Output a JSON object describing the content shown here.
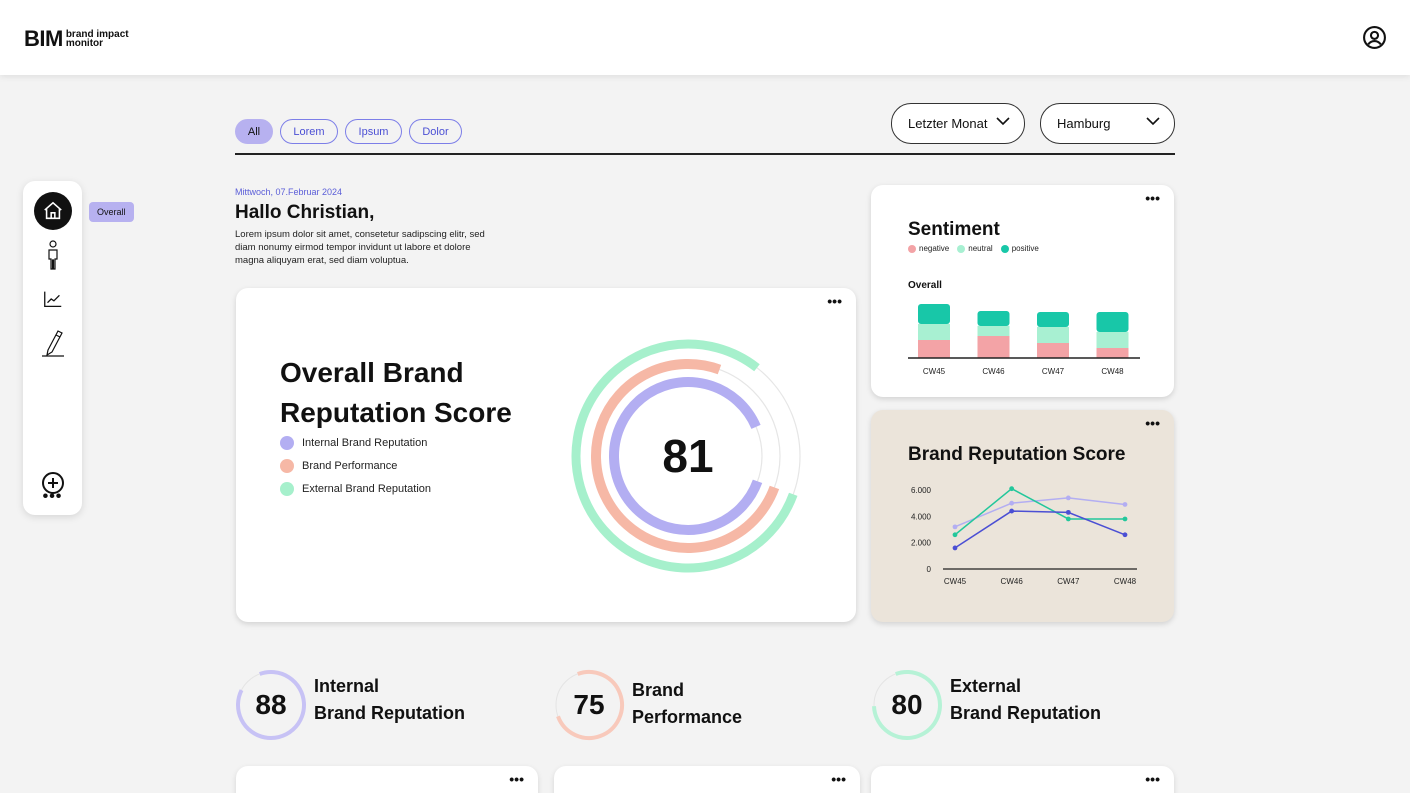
{
  "brand": {
    "logo_main": "BIM",
    "logo_sub_line1": "brand impact",
    "logo_sub_line2": "monitor"
  },
  "nav": {
    "items": [
      "home",
      "person",
      "chart",
      "pencil"
    ],
    "tooltip": "Overall",
    "add_icon": "plus-circle-icon"
  },
  "filters": {
    "pills": [
      {
        "label": "All",
        "active": true
      },
      {
        "label": "Lorem",
        "active": false
      },
      {
        "label": "Ipsum",
        "active": false
      },
      {
        "label": "Dolor",
        "active": false
      }
    ],
    "period": "Letzter Monat",
    "city": "Hamburg"
  },
  "intro": {
    "date": "Mittwoch, 07.Februar 2024",
    "greeting": "Hallo Christian,",
    "text": "Lorem ipsum dolor sit amet, consetetur sadipscing elitr, sed diam nonumy eirmod tempor invidunt ut labore et dolore magna aliquyam erat, sed diam voluptua."
  },
  "overall_card": {
    "title_line1": "Overall Brand",
    "title_line2": "Reputation Score",
    "score": "81",
    "legend": [
      {
        "label": "Internal Brand Reputation",
        "color": "#b3aef2"
      },
      {
        "label": "Brand Performance",
        "color": "#f6b8a6"
      },
      {
        "label": "External Brand Reputation",
        "color": "#a6f0cc"
      }
    ],
    "rings": [
      {
        "name": "External Brand Reputation",
        "fraction": 0.8,
        "color": "#a6f0cc"
      },
      {
        "name": "Brand Performance",
        "fraction": 0.75,
        "color": "#f6b8a6"
      },
      {
        "name": "Internal Brand Reputation",
        "fraction": 0.88,
        "color": "#b3aef2"
      }
    ]
  },
  "sentiment_card": {
    "title": "Sentiment",
    "subtitle": "Overall",
    "legend": [
      {
        "label": "negative",
        "color": "#f3a3a6"
      },
      {
        "label": "neutral",
        "color": "#a8f0d2"
      },
      {
        "label": "positive",
        "color": "#18c7a8"
      }
    ]
  },
  "score_card": {
    "title": "Brand Reputation Score"
  },
  "chart_data": [
    {
      "type": "bar",
      "title": "Sentiment",
      "subtitle": "Overall",
      "categories": [
        "CW45",
        "CW46",
        "CW47",
        "CW48"
      ],
      "stacked": true,
      "series": [
        {
          "name": "negative",
          "values": [
            18,
            22,
            15,
            10
          ],
          "color": "#f3a3a6"
        },
        {
          "name": "neutral",
          "values": [
            16,
            10,
            16,
            16
          ],
          "color": "#a8f0d2"
        },
        {
          "name": "positive",
          "values": [
            20,
            15,
            15,
            20
          ],
          "color": "#18c7a8"
        }
      ],
      "ylim": [
        0,
        60
      ]
    },
    {
      "type": "line",
      "title": "Brand Reputation Score",
      "categories": [
        "CW45",
        "CW46",
        "CW47",
        "CW48"
      ],
      "yticks": [
        "6.000",
        "4.000",
        "2.000",
        "0"
      ],
      "ylim": [
        0,
        6000
      ],
      "series": [
        {
          "values": [
            3200,
            5000,
            5400,
            4900
          ],
          "color": "#b3aef2"
        },
        {
          "values": [
            2600,
            6100,
            3800,
            3800
          ],
          "color": "#23c79b"
        },
        {
          "values": [
            1600,
            4400,
            4300,
            2600
          ],
          "color": "#4b4fd4"
        }
      ]
    }
  ],
  "kpis": [
    {
      "value": "88",
      "line1": "Internal",
      "line2": "Brand Reputation",
      "fraction": 0.88,
      "color": "#c7c2f5"
    },
    {
      "value": "75",
      "line1": "Brand",
      "line2": "Performance",
      "fraction": 0.75,
      "color": "#f8c9bb"
    },
    {
      "value": "80",
      "line1": "External",
      "line2": "Brand Reputation",
      "fraction": 0.8,
      "color": "#b6f2d6"
    }
  ],
  "colors": {
    "accent": "#b7b1f0",
    "link": "#5b5ed8",
    "score_card_bg": "#ebe4da"
  }
}
